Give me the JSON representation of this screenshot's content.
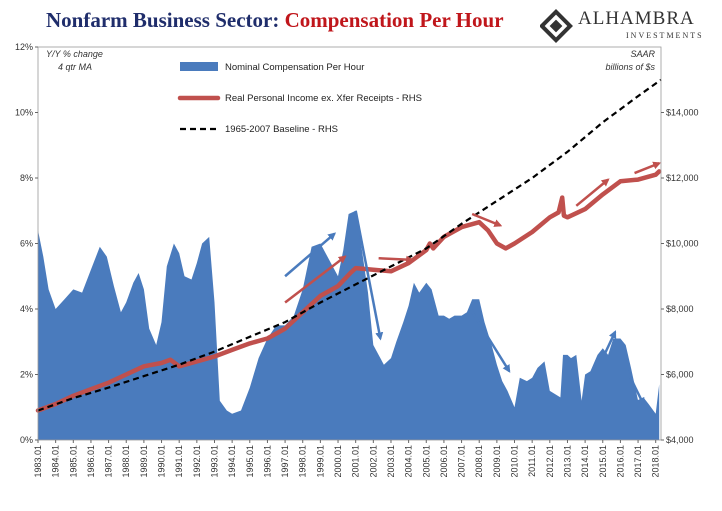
{
  "title": {
    "part1": "Nonfarm Business Sector:",
    "part2": "Compensation Per Hour"
  },
  "logo": {
    "word": "ALHAMBRA",
    "sub": "INVESTMENTS"
  },
  "notes": {
    "left_line1": "Y/Y % change",
    "left_line2": "4 qtr MA",
    "right_line1": "SAAR",
    "right_line2": "billions of $s"
  },
  "colors": {
    "area": "#4a7bbd",
    "real": "#c0504d",
    "baseline": "#000000",
    "arrow_blue": "#4a7bbd",
    "arrow_red": "#c0504d"
  },
  "chart_data": {
    "type": "area",
    "left_axis": {
      "ylim": [
        0,
        12
      ],
      "ticks": [
        "0%",
        "2%",
        "4%",
        "6%",
        "8%",
        "10%",
        "12%"
      ]
    },
    "right_axis": {
      "ylim": [
        4000,
        16000
      ],
      "ticks": [
        "$4,000",
        "$6,000",
        "$8,000",
        "$10,000",
        "$12,000",
        "$14,000"
      ]
    },
    "x_labels": [
      "1983.01",
      "1984.01",
      "1985.01",
      "1986.01",
      "1987.01",
      "1988.01",
      "1989.01",
      "1990.01",
      "1991.01",
      "1992.01",
      "1993.01",
      "1994.01",
      "1995.01",
      "1996.01",
      "1997.01",
      "1998.01",
      "1999.01",
      "2000.01",
      "2001.01",
      "2002.01",
      "2003.01",
      "2004.01",
      "2005.01",
      "2006.01",
      "2007.01",
      "2008.01",
      "2009.01",
      "2010.01",
      "2011.01",
      "2012.01",
      "2013.01",
      "2014.01",
      "2015.01",
      "2016.01",
      "2017.01",
      "2018.01"
    ],
    "xlim": [
      1983,
      2018.3
    ],
    "series": [
      {
        "name": "Nominal Compensation Per Hour",
        "axis": "left",
        "type": "area",
        "x": [
          1983.0,
          1983.3,
          1983.6,
          1984.0,
          1984.5,
          1985.0,
          1985.5,
          1986.0,
          1986.5,
          1986.9,
          1987.3,
          1987.7,
          1988.0,
          1988.4,
          1988.7,
          1989.0,
          1989.3,
          1989.7,
          1990.0,
          1990.3,
          1990.7,
          1991.0,
          1991.3,
          1991.7,
          1992.0,
          1992.3,
          1992.7,
          1993.0,
          1993.3,
          1993.7,
          1994.0,
          1994.5,
          1995.0,
          1995.5,
          1996.0,
          1996.5,
          1997.0,
          1997.5,
          1998.0,
          1998.5,
          1999.0,
          1999.5,
          2000.0,
          2000.3,
          2000.6,
          2001.0,
          2001.3,
          2001.7,
          2002.0,
          2002.3,
          2002.6,
          2003.0,
          2003.3,
          2003.7,
          2004.0,
          2004.3,
          2004.6,
          2005.0,
          2005.3,
          2005.7,
          2006.0,
          2006.3,
          2006.6,
          2007.0,
          2007.3,
          2007.6,
          2008.0,
          2008.3,
          2008.7,
          2009.0,
          2009.3,
          2009.6,
          2010.0,
          2010.3,
          2010.7,
          2011.0,
          2011.3,
          2011.7,
          2012.0,
          2012.3,
          2012.6,
          2012.75,
          2013.0,
          2013.2,
          2013.5,
          2013.8,
          2014.0,
          2014.3,
          2014.7,
          2015.0,
          2015.3,
          2015.6,
          2016.0,
          2016.3,
          2016.6,
          2017.0,
          2017.3,
          2017.6,
          2018.0,
          2018.2
        ],
        "values": [
          6.4,
          5.6,
          4.6,
          4.0,
          4.3,
          4.6,
          4.5,
          5.2,
          5.9,
          5.6,
          4.7,
          3.9,
          4.2,
          4.8,
          5.1,
          4.6,
          3.4,
          2.9,
          3.6,
          5.3,
          6.0,
          5.7,
          5.0,
          4.9,
          5.4,
          6.0,
          6.2,
          4.2,
          1.2,
          0.9,
          0.8,
          0.9,
          1.6,
          2.5,
          3.1,
          3.5,
          3.5,
          3.8,
          4.6,
          5.9,
          6.0,
          5.5,
          5.0,
          5.8,
          6.9,
          7.0,
          6.0,
          4.5,
          2.9,
          2.6,
          2.3,
          2.5,
          3.0,
          3.6,
          4.1,
          4.8,
          4.5,
          4.8,
          4.6,
          3.8,
          3.8,
          3.7,
          3.8,
          3.8,
          3.9,
          4.3,
          4.3,
          3.6,
          2.9,
          2.3,
          1.8,
          1.5,
          1.0,
          1.9,
          1.8,
          1.9,
          2.2,
          2.4,
          1.5,
          1.4,
          1.3,
          2.6,
          2.6,
          2.5,
          2.6,
          1.2,
          2.0,
          2.1,
          2.6,
          2.8,
          2.6,
          3.1,
          3.1,
          2.9,
          2.2,
          1.2,
          1.3,
          1.1,
          0.8,
          1.7
        ]
      },
      {
        "name": "Real Personal Income ex. Xfer Receipts - RHS",
        "axis": "right",
        "type": "line",
        "x": [
          1983.0,
          1984.0,
          1985.0,
          1986.0,
          1987.0,
          1988.0,
          1989.0,
          1990.0,
          1990.5,
          1991.0,
          1992.0,
          1993.0,
          1994.0,
          1995.0,
          1996.0,
          1997.0,
          1998.0,
          1999.0,
          2000.0,
          2000.7,
          2001.0,
          2002.0,
          2003.0,
          2004.0,
          2005.0,
          2005.2,
          2005.4,
          2006.0,
          2007.0,
          2008.0,
          2008.5,
          2009.0,
          2009.5,
          2010.0,
          2011.0,
          2012.0,
          2012.5,
          2012.7,
          2012.8,
          2013.0,
          2014.0,
          2015.0,
          2016.0,
          2017.0,
          2018.0,
          2018.2
        ],
        "values": [
          4900,
          5100,
          5350,
          5550,
          5750,
          6000,
          6250,
          6350,
          6450,
          6250,
          6400,
          6550,
          6750,
          6950,
          7100,
          7400,
          7900,
          8400,
          8700,
          9100,
          9250,
          9200,
          9150,
          9400,
          9800,
          10000,
          9850,
          10200,
          10500,
          10650,
          10400,
          10000,
          9850,
          10000,
          10350,
          10800,
          10950,
          11400,
          10850,
          10800,
          11050,
          11500,
          11900,
          11950,
          12100,
          12200
        ]
      },
      {
        "name": "1965-2007 Baseline - RHS",
        "axis": "right",
        "type": "line-dashed",
        "x": [
          1983,
          1985,
          1987,
          1989,
          1991,
          1993,
          1995,
          1997,
          1999,
          2001,
          2003,
          2005,
          2007,
          2009,
          2011,
          2013,
          2015,
          2017,
          2018.3
        ],
        "values": [
          4900,
          5280,
          5600,
          5950,
          6300,
          6700,
          7150,
          7600,
          8200,
          8750,
          9300,
          9850,
          10600,
          11300,
          12000,
          12800,
          13700,
          14500,
          15000
        ]
      }
    ],
    "legend_position": "top-left"
  }
}
